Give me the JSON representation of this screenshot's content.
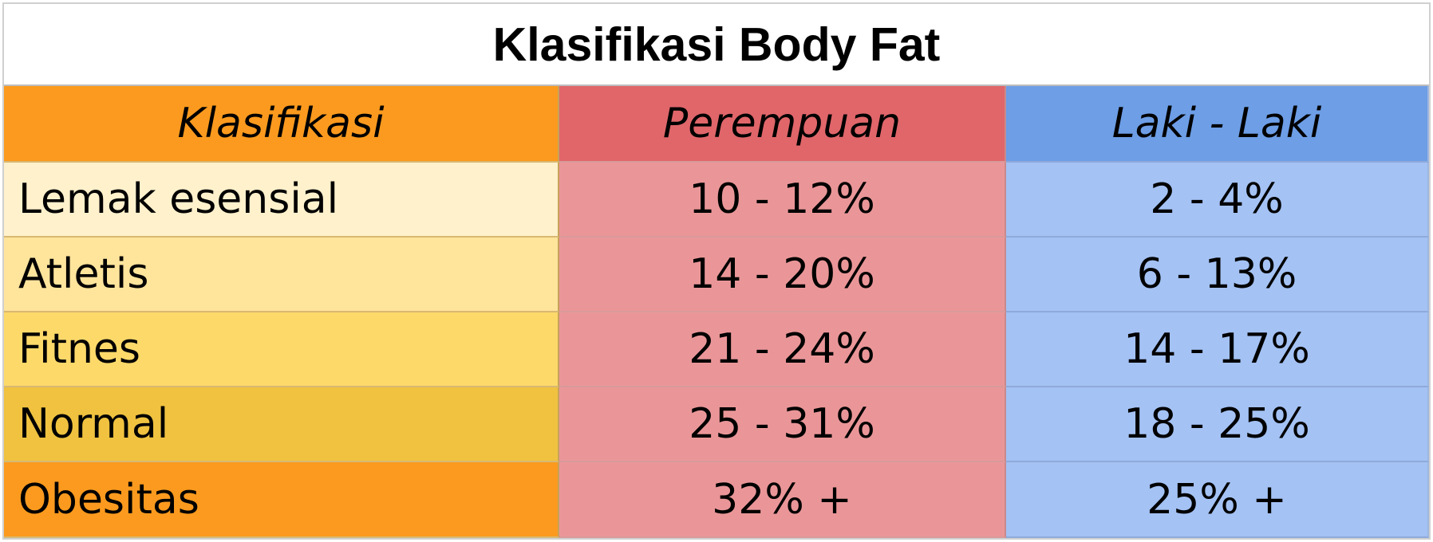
{
  "title": "Klasifikasi Body Fat",
  "headers": {
    "klasifikasi": "Klasifikasi",
    "perempuan": "Perempuan",
    "laki": "Laki - Laki"
  },
  "rows": [
    {
      "klasifikasi": "Lemak esensial",
      "perempuan": "10 - 12%",
      "laki": "2 - 4%"
    },
    {
      "klasifikasi": "Atletis",
      "perempuan": "14 - 20%",
      "laki": "6 - 13%"
    },
    {
      "klasifikasi": "Fitnes",
      "perempuan": "21 - 24%",
      "laki": "14 - 17%"
    },
    {
      "klasifikasi": "Normal",
      "perempuan": "25 - 31%",
      "laki": "18 - 25%"
    },
    {
      "klasifikasi": "Obesitas",
      "perempuan": "32% +",
      "laki": "25% +"
    }
  ],
  "colors": {
    "header_klasifikasi": "#fb9a1e",
    "header_perempuan": "#e0666a",
    "header_laki": "#6d9ee6",
    "cell_perempuan": "#ea9698",
    "cell_laki": "#a4c2f4",
    "klasifikasi_rows": [
      "#fff1cc",
      "#ffe49c",
      "#fdd96a",
      "#f0c23f",
      "#fb9a1e"
    ]
  }
}
